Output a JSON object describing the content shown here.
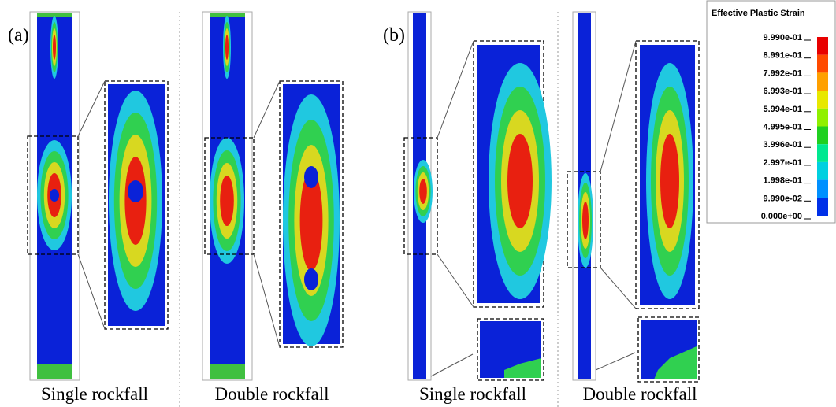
{
  "panels": [
    {
      "label": "(a)",
      "captions": [
        "Single rockfall",
        "Double rockfall"
      ]
    },
    {
      "label": "(b)",
      "captions": [
        "Single rockfall",
        "Double rockfall"
      ]
    }
  ],
  "legend": {
    "title": "Effective Plastic Strain",
    "labels": [
      "9.990e-01",
      "8.991e-01",
      "7.992e-01",
      "6.993e-01",
      "5.994e-01",
      "4.995e-01",
      "3.996e-01",
      "2.997e-01",
      "1.998e-01",
      "9.990e-02",
      "0.000e+00"
    ]
  }
}
